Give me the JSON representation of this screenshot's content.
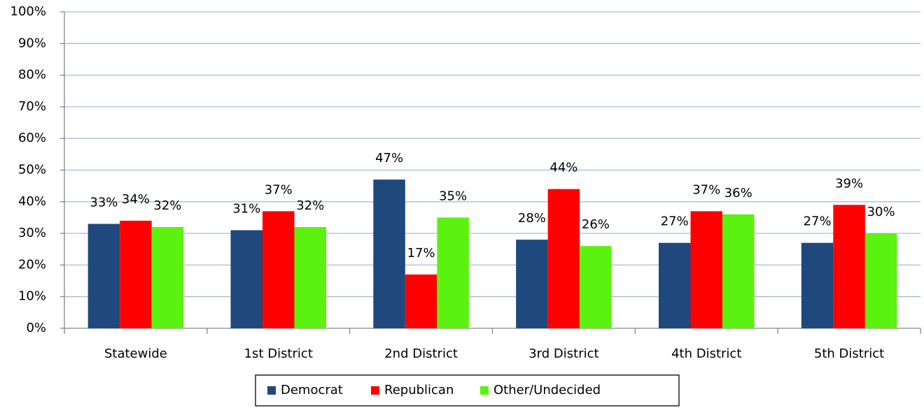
{
  "chart_data": {
    "type": "bar",
    "categories": [
      "Statewide",
      "1st District",
      "2nd District",
      "3rd District",
      "4th District",
      "5th District"
    ],
    "series": [
      {
        "name": "Democrat",
        "color": "#1f497d",
        "values": [
          33,
          31,
          47,
          28,
          27,
          27
        ],
        "value_labels": [
          "33%",
          "31%",
          "47%",
          "28%",
          "27%",
          "27%"
        ]
      },
      {
        "name": "Republican",
        "color": "#ff0000",
        "values": [
          34,
          37,
          17,
          44,
          37,
          39
        ],
        "value_labels": [
          "34%",
          "37%",
          "17%",
          "44%",
          "37%",
          "39%"
        ]
      },
      {
        "name": "Other/Undecided",
        "color": "#5cf20f",
        "values": [
          32,
          32,
          35,
          26,
          36,
          30
        ],
        "value_labels": [
          "32%",
          "32%",
          "35%",
          "26%",
          "36%",
          "30%"
        ]
      }
    ],
    "ylim": [
      0,
      100
    ],
    "yticks": [
      {
        "value": 0,
        "label": "0%"
      },
      {
        "value": 10,
        "label": "10%"
      },
      {
        "value": 20,
        "label": "20%"
      },
      {
        "value": 30,
        "label": "30%"
      },
      {
        "value": 40,
        "label": "40%"
      },
      {
        "value": 50,
        "label": "50%"
      },
      {
        "value": 60,
        "label": "60%"
      },
      {
        "value": 70,
        "label": "70%"
      },
      {
        "value": 80,
        "label": "80%"
      },
      {
        "value": 90,
        "label": "90%"
      },
      {
        "value": 100,
        "label": "100%"
      }
    ],
    "grid": true,
    "legend": "bottom"
  }
}
